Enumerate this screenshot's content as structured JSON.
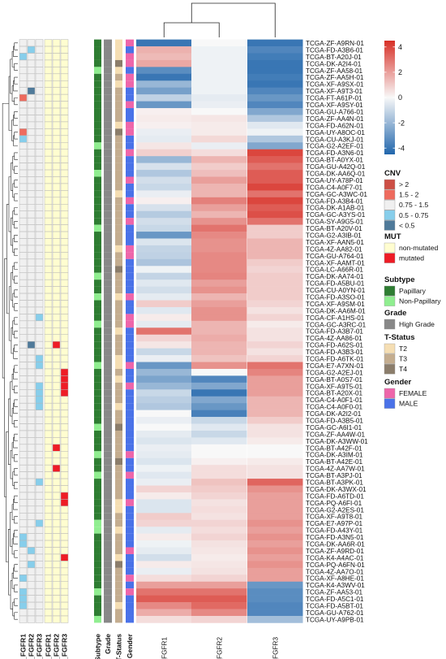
{
  "chart_data": {
    "type": "heatmap",
    "title": "",
    "samples": [
      "TCGA-ZF-A9RN-01",
      "TCGA-FD-A3B6-01",
      "TCGA-BT-A20J-01",
      "TCGA-DK-A2I4-01",
      "TCGA-ZF-AA58-01",
      "TCGA-ZF-AA5H-01",
      "TCGA-XF-A9SX-01",
      "TCGA-XF-A9T3-01",
      "TCGA-FT-A61P-01",
      "TCGA-XF-A9SY-01",
      "TCGA-GU-A766-01",
      "TCGA-ZF-AA4N-01",
      "TCGA-FD-A62N-01",
      "TCGA-UY-A8OC-01",
      "TCGA-CU-A3KJ-01",
      "TCGA-G2-A2EF-01",
      "TCGA-FD-A3N6-01",
      "TCGA-BT-A0YX-01",
      "TCGA-GU-A42Q-01",
      "TCGA-DK-AA6Q-01",
      "TCGA-UY-A78P-01",
      "TCGA-C4-A0F7-01",
      "TCGA-GC-A3WC-01",
      "TCGA-FD-A3B4-01",
      "TCGA-DK-A1AB-01",
      "TCGA-GC-A3YS-01",
      "TCGA-SY-A9G5-01",
      "TCGA-BT-A20V-01",
      "TCGA-G2-A3IB-01",
      "TCGA-XF-AAN5-01",
      "TCGA-4Z-AA82-01",
      "TCGA-GU-A764-01",
      "TCGA-XF-AAMT-01",
      "TCGA-LC-A66R-01",
      "TCGA-DK-AA74-01",
      "TCGA-FD-A5BU-01",
      "TCGA-CU-A0YN-01",
      "TCGA-FD-A3SO-01",
      "TCGA-XF-A9SM-01",
      "TCGA-DK-AA6M-01",
      "TCGA-CF-A1HS-01",
      "TCGA-GC-A3RC-01",
      "TCGA-FD-A3B7-01",
      "TCGA-4Z-AA86-01",
      "TCGA-FD-A62S-01",
      "TCGA-FD-A3B3-01",
      "TCGA-FD-A6TK-01",
      "TCGA-E7-A7XN-01",
      "TCGA-G2-A2EJ-01",
      "TCGA-BT-A0S7-01",
      "TCGA-XF-A9T5-01",
      "TCGA-BT-A20X-01",
      "TCGA-C4-A0F1-01",
      "TCGA-C4-A0F0-01",
      "TCGA-DK-A2I2-01",
      "TCGA-FD-A3B5-01",
      "TCGA-GC-A6I1-01",
      "TCGA-ZF-AA4W-01",
      "TCGA-DK-A3WW-01",
      "TCGA-BT-A42F-01",
      "TCGA-DK-A3IM-01",
      "TCGA-BT-A42E-01",
      "TCGA-4Z-AA7W-01",
      "TCGA-BT-A3PJ-01",
      "TCGA-BT-A3PK-01",
      "TCGA-DK-A3WX-01",
      "TCGA-FD-A6TD-01",
      "TCGA-PQ-A6FI-01",
      "TCGA-G2-A2ES-01",
      "TCGA-XF-A9T8-01",
      "TCGA-E7-A97P-01",
      "TCGA-FD-A43Y-01",
      "TCGA-FD-A3N5-01",
      "TCGA-DK-AA6R-01",
      "TCGA-ZF-A9RD-01",
      "TCGA-K4-A4AC-01",
      "TCGA-PQ-A6FN-01",
      "TCGA-4Z-AA7O-01",
      "TCGA-XF-A8HE-01",
      "TCGA-K4-A3WV-01",
      "TCGA-ZF-AA53-01",
      "TCGA-FD-A5C1-01",
      "TCGA-FD-A5BT-01",
      "TCGA-GU-A762-01",
      "TCGA-UY-A9PB-01"
    ],
    "columns": [
      "EXPR_FGFR1",
      "EXPR_FGFR2",
      "EXPR_FGFR3"
    ],
    "values": [
      [
        -4,
        0,
        -4
      ],
      [
        1.6,
        -0.2,
        -3.5
      ],
      [
        1.4,
        -0.2,
        -3.8
      ],
      [
        1.8,
        -0.2,
        -4
      ],
      [
        -3.3,
        -0.2,
        -4
      ],
      [
        -4,
        -0.2,
        -3.8
      ],
      [
        -2,
        -0.2,
        -4
      ],
      [
        -2.7,
        -0.2,
        -3.5
      ],
      [
        -1.2,
        -0.4,
        -3
      ],
      [
        -3,
        -0.3,
        -3.5
      ],
      [
        0.2,
        0,
        -2.5
      ],
      [
        0.3,
        0.4,
        -1.5
      ],
      [
        0.2,
        0.3,
        -0.5
      ],
      [
        -0.3,
        0.3,
        -0.2
      ],
      [
        -0.4,
        0.7,
        -1.5
      ],
      [
        0.4,
        -0.3,
        -2.5
      ],
      [
        0.9,
        0.6,
        4
      ],
      [
        -2,
        1.5,
        3.5
      ],
      [
        -0.7,
        1,
        3
      ],
      [
        -1.5,
        1.3,
        3.5
      ],
      [
        -0.8,
        2,
        3.5
      ],
      [
        -1,
        1.5,
        4
      ],
      [
        -0.3,
        1.5,
        3
      ],
      [
        0.2,
        2.7,
        4
      ],
      [
        -0.7,
        2,
        3.5
      ],
      [
        -1.4,
        1.5,
        3.8
      ],
      [
        -0.8,
        2.3,
        3
      ],
      [
        -1,
        3,
        1
      ],
      [
        -3,
        2.5,
        1
      ],
      [
        -0.6,
        2.3,
        1.5
      ],
      [
        -1.1,
        2.3,
        1.5
      ],
      [
        -1.2,
        2.5,
        1.5
      ],
      [
        -1.6,
        2.5,
        1
      ],
      [
        -0.2,
        2.5,
        0.8
      ],
      [
        -1.1,
        2.6,
        1
      ],
      [
        -0.5,
        2,
        1
      ],
      [
        -0.8,
        2.3,
        1
      ],
      [
        -0.4,
        1.5,
        1
      ],
      [
        1,
        2,
        0.8
      ],
      [
        -0.5,
        2.3,
        0.5
      ],
      [
        0.3,
        2.3,
        0.8
      ],
      [
        -0.4,
        1.5,
        0.3
      ],
      [
        3,
        1.5,
        0.5
      ],
      [
        0.8,
        1.7,
        0.5
      ],
      [
        0.4,
        1.5,
        0.8
      ],
      [
        -1,
        1.5,
        0.5
      ],
      [
        -0.3,
        1.2,
        0.8
      ],
      [
        -3,
        2.3,
        3
      ],
      [
        -2,
        0,
        2.6
      ],
      [
        -2.6,
        -3.5,
        2
      ],
      [
        -2,
        -2.5,
        2
      ],
      [
        -1,
        -4,
        2
      ],
      [
        -1.3,
        -2.5,
        1.5
      ],
      [
        -1.5,
        -3,
        1.5
      ],
      [
        0,
        -3.7,
        1.5
      ],
      [
        -0.3,
        -1,
        1
      ],
      [
        0,
        -0.5,
        0.5
      ],
      [
        -0.4,
        -1,
        0.5
      ],
      [
        -0.6,
        -0.5,
        0.3
      ],
      [
        -0.3,
        0,
        0
      ],
      [
        -0.4,
        0,
        0
      ],
      [
        -0.6,
        0.2,
        0.3
      ],
      [
        -0.2,
        0.6,
        0.5
      ],
      [
        -0.5,
        0.6,
        0.5
      ],
      [
        -0.3,
        1.2,
        3.3
      ],
      [
        0.8,
        1,
        2.3
      ],
      [
        0.3,
        0.8,
        2
      ],
      [
        -0.6,
        0.5,
        2
      ],
      [
        -0.6,
        0.6,
        2
      ],
      [
        1,
        0.5,
        2
      ],
      [
        0.8,
        0.8,
        2.3
      ],
      [
        -0.4,
        0.6,
        2
      ],
      [
        0.3,
        0.8,
        2.3
      ],
      [
        -0.2,
        0.5,
        2
      ],
      [
        -0.4,
        0.4,
        2.3
      ],
      [
        -0.8,
        0.3,
        2
      ],
      [
        0.3,
        0.4,
        2.3
      ],
      [
        -0.3,
        0.5,
        2
      ],
      [
        0.6,
        0.8,
        2
      ],
      [
        2,
        2,
        -3
      ],
      [
        3,
        3,
        -3.3
      ],
      [
        3.5,
        3.5,
        -3.3
      ],
      [
        2.5,
        3.2,
        -3.5
      ],
      [
        1.7,
        2.5,
        -3.5
      ],
      [
        0.6,
        0.8,
        -1.8
      ]
    ],
    "color_scale": {
      "range": [
        -4.5,
        4.5
      ],
      "ticks": [
        4,
        2,
        0,
        -2,
        -4
      ],
      "colors": {
        "low": "#2166ac",
        "mid": "#f8f8f8",
        "high": "#d73027"
      }
    },
    "annotations": {
      "tracks": [
        "CNV_FGFR1",
        "CNV_FGFR2",
        "CNV_FGFR3",
        "MUT_FGFR1",
        "MUT_FGFR2",
        "MUT_FGFR3",
        "Subtype",
        "Grade",
        "T-Status",
        "Gender"
      ],
      "CNV_FGFR1": {
        "nl": [
          [
            2,
            "a"
          ],
          [
            8,
            "h"
          ],
          [
            13,
            "h"
          ],
          [
            14,
            "a"
          ],
          [
            72,
            "a"
          ],
          [
            73,
            "a"
          ],
          [
            78,
            "a"
          ],
          [
            80,
            "a"
          ],
          [
            81,
            "a"
          ],
          [
            82,
            "a"
          ]
        ]
      },
      "CNV_FGFR2": {
        "nl": [
          [
            1,
            "a"
          ],
          [
            7,
            "b"
          ],
          [
            11,
            "w"
          ],
          [
            44,
            "b"
          ],
          [
            74,
            "a"
          ],
          [
            76,
            "a"
          ]
        ]
      },
      "CNV_FGFR3": {
        "nl": [
          [
            40,
            "a"
          ],
          [
            46,
            "a"
          ],
          [
            47,
            "a"
          ],
          [
            50,
            "a"
          ],
          [
            51,
            "a"
          ],
          [
            52,
            "a"
          ],
          [
            53,
            "a"
          ],
          [
            57,
            "w"
          ],
          [
            63,
            "w"
          ],
          [
            64,
            "a"
          ],
          [
            70,
            "a"
          ]
        ]
      },
      "MUT_FGFR1": {
        "nl": []
      },
      "MUT_FGFR2": {
        "nl": [
          [
            44,
            "m"
          ],
          [
            59,
            "m"
          ],
          [
            62,
            "m"
          ]
        ]
      },
      "MUT_FGFR3": {
        "nl": [
          [
            48,
            "m"
          ],
          [
            49,
            "m"
          ],
          [
            50,
            "m"
          ],
          [
            51,
            "m"
          ],
          [
            66,
            "m"
          ],
          [
            67,
            "m"
          ],
          [
            75,
            "m"
          ]
        ]
      },
      "Subtype": {
        "base": "p",
        "nl": [
          [
            4,
            "t"
          ],
          [
            15,
            "t"
          ],
          [
            19,
            "t"
          ],
          [
            27,
            "t"
          ],
          [
            34,
            "t"
          ],
          [
            37,
            "t"
          ],
          [
            41,
            "t"
          ],
          [
            47,
            "t"
          ],
          [
            56,
            "t"
          ],
          [
            60,
            "t"
          ],
          [
            63,
            "t"
          ],
          [
            70,
            "t"
          ],
          [
            71,
            "t"
          ],
          [
            80,
            "t"
          ],
          [
            84,
            "t"
          ]
        ]
      },
      "Grade": {
        "base": "g",
        "nl": []
      },
      "T-Status": {
        "base": "s3",
        "nl": [
          [
            0,
            "s2"
          ],
          [
            1,
            "s2"
          ],
          [
            2,
            "s2"
          ],
          [
            3,
            "s4"
          ],
          [
            4,
            "s2"
          ],
          [
            6,
            "s2"
          ],
          [
            12,
            "s2"
          ],
          [
            13,
            "s4"
          ],
          [
            22,
            "s2"
          ],
          [
            30,
            "s2"
          ],
          [
            33,
            "s4"
          ],
          [
            37,
            "s2"
          ],
          [
            42,
            "s2"
          ],
          [
            46,
            "s2"
          ],
          [
            47,
            "s2"
          ],
          [
            49,
            "s2"
          ],
          [
            53,
            "s2"
          ],
          [
            56,
            "s4"
          ],
          [
            61,
            "s4"
          ],
          [
            67,
            "s2"
          ],
          [
            68,
            "s2"
          ],
          [
            71,
            "s2"
          ],
          [
            75,
            "s2"
          ],
          [
            76,
            "s4"
          ],
          [
            82,
            "s2"
          ]
        ]
      },
      "Gender": {
        "base": "ml",
        "nl": [
          [
            0,
            "f"
          ],
          [
            2,
            "f"
          ],
          [
            3,
            "f"
          ],
          [
            5,
            "f"
          ],
          [
            6,
            "f"
          ],
          [
            9,
            "f"
          ],
          [
            12,
            "f"
          ],
          [
            13,
            "f"
          ],
          [
            16,
            "f"
          ],
          [
            20,
            "f"
          ],
          [
            23,
            "f"
          ],
          [
            26,
            "f"
          ],
          [
            30,
            "f"
          ],
          [
            31,
            "f"
          ],
          [
            37,
            "f"
          ],
          [
            40,
            "f"
          ],
          [
            41,
            "f"
          ],
          [
            47,
            "f"
          ],
          [
            50,
            "f"
          ],
          [
            60,
            "f"
          ],
          [
            63,
            "f"
          ],
          [
            67,
            "f"
          ],
          [
            74,
            "f"
          ],
          [
            78,
            "f"
          ],
          [
            80,
            "f"
          ]
        ]
      }
    },
    "annotation_colors": {
      "a": "#87ceeb",
      "h": "#ee6b5e",
      "w": "#f0f0f0",
      "b": "#4f7a9a",
      "m": "#ee1c25",
      "p": "#2e7d32",
      "t": "#90ee90",
      "g": "#888888",
      "s2": "#f5deb3",
      "s3": "#c4ad8f",
      "s4": "#8b7d6b",
      "f": "#ee66aa",
      "ml": "#4a72e8",
      "nm": "#fffdd0"
    },
    "legend": {
      "placement": "right",
      "groups": [
        {
          "title": "CNV",
          "items": [
            {
              "label": "> 2",
              "color": "#cd4f45"
            },
            {
              "label": "1.5 - 2",
              "color": "#ee6b5e"
            },
            {
              "label": "0.75 - 1.5",
              "color": "#f0f0f0"
            },
            {
              "label": "0.5 - 0.75",
              "color": "#87ceeb"
            },
            {
              "label": "< 0.5",
              "color": "#4f7a9a"
            }
          ]
        },
        {
          "title": "MUT",
          "items": [
            {
              "label": "non-mutated",
              "color": "#fffdd0"
            },
            {
              "label": "mutated",
              "color": "#ee1c25"
            }
          ]
        },
        {
          "title": "Subtype",
          "items": [
            {
              "label": "Papillary",
              "color": "#2e7d32"
            },
            {
              "label": "Non-Papillary",
              "color": "#90ee90"
            }
          ]
        },
        {
          "title": "Grade",
          "items": [
            {
              "label": "High Grade",
              "color": "#888888"
            }
          ]
        },
        {
          "title": "T-Status",
          "items": [
            {
              "label": "T2",
              "color": "#f5deb3"
            },
            {
              "label": "T3",
              "color": "#c4ad8f"
            },
            {
              "label": "T4",
              "color": "#8b7d6b"
            }
          ]
        },
        {
          "title": "Gender",
          "items": [
            {
              "label": "FEMALE",
              "color": "#ee66aa"
            },
            {
              "label": "MALE",
              "color": "#4a72e8"
            }
          ]
        }
      ]
    },
    "dendrograms": [
      "columns",
      "rows"
    ]
  }
}
